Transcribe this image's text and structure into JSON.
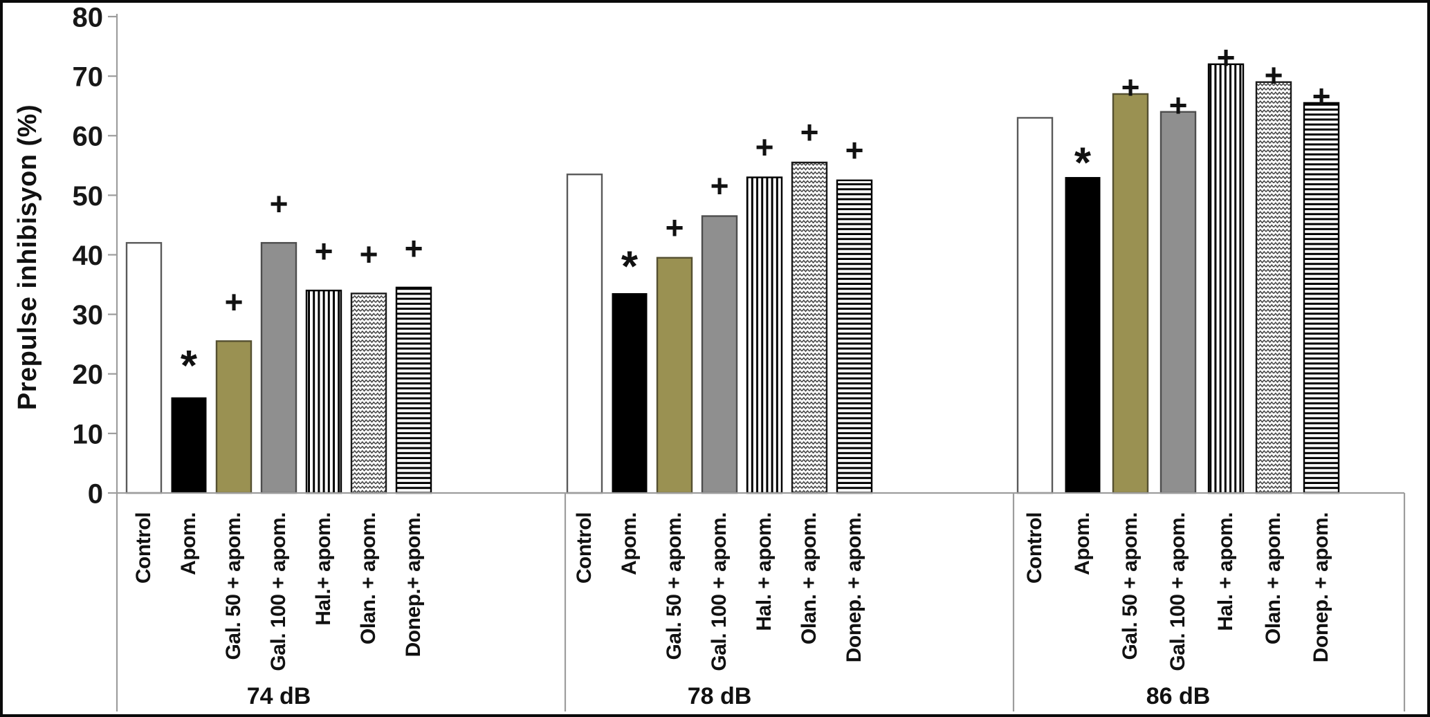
{
  "chart_data": {
    "type": "bar",
    "title": "",
    "ylabel": "Prepulse inhibisyon (%)",
    "xlabel": "",
    "ylim": [
      0,
      80
    ],
    "yticks": [
      0,
      10,
      20,
      30,
      40,
      50,
      60,
      70,
      80
    ],
    "grid": false,
    "legend_position": "none",
    "annotation_symbols": {
      "significant_decrease": "*",
      "significant_increase": "+"
    },
    "group_labels": [
      "74 dB",
      "78 dB",
      "86 dB"
    ],
    "series_styles": [
      {
        "key": "control",
        "fill": "#ffffff",
        "outline": "#595959",
        "pattern": "solid"
      },
      {
        "key": "apom",
        "fill": "#000000",
        "outline": "#000000",
        "pattern": "solid"
      },
      {
        "key": "gal50",
        "fill": "#9a9152",
        "outline": "#555031",
        "pattern": "solid"
      },
      {
        "key": "gal100",
        "fill": "#8f8f8f",
        "outline": "#4d4d4d",
        "pattern": "solid"
      },
      {
        "key": "hal",
        "fill": "#ffffff",
        "outline": "#000000",
        "pattern": "vertical-stripes"
      },
      {
        "key": "olan",
        "fill": "#ffffff",
        "outline": "#1a1a1a",
        "pattern": "zigzag"
      },
      {
        "key": "donep",
        "fill": "#ffffff",
        "outline": "#000000",
        "pattern": "horizontal-stripes"
      }
    ],
    "groups": [
      {
        "label": "74 dB",
        "bars": [
          {
            "category": "Control",
            "value": 42,
            "annotation": ""
          },
          {
            "category": "Apom.",
            "value": 16,
            "annotation": "*"
          },
          {
            "category": "Gal. 50 + apom.",
            "value": 25.5,
            "annotation": "+"
          },
          {
            "category": "Gal. 100 + apom.",
            "value": 42,
            "annotation": "+"
          },
          {
            "category": "Hal.+ apom.",
            "value": 34,
            "annotation": "+"
          },
          {
            "category": "Olan. + apom.",
            "value": 33.5,
            "annotation": "+"
          },
          {
            "category": "Donep.+ apom.",
            "value": 34.5,
            "annotation": "+"
          }
        ]
      },
      {
        "label": "78 dB",
        "bars": [
          {
            "category": "Control",
            "value": 53.5,
            "annotation": ""
          },
          {
            "category": "Apom.",
            "value": 33.5,
            "annotation": "*"
          },
          {
            "category": "Gal. 50 + apom.",
            "value": 39.5,
            "annotation": "+"
          },
          {
            "category": "Gal. 100 + apom.",
            "value": 46.5,
            "annotation": "+"
          },
          {
            "category": "Hal. + apom.",
            "value": 53,
            "annotation": "+"
          },
          {
            "category": "Olan. + apom.",
            "value": 55.5,
            "annotation": "+"
          },
          {
            "category": "Donep. + apom.",
            "value": 52.5,
            "annotation": "+"
          }
        ]
      },
      {
        "label": "86 dB",
        "bars": [
          {
            "category": "Control",
            "value": 63,
            "annotation": ""
          },
          {
            "category": "Apom.",
            "value": 53,
            "annotation": "*"
          },
          {
            "category": "Gal. 50 + apom.",
            "value": 67,
            "annotation": "+"
          },
          {
            "category": "Gal. 100 + apom.",
            "value": 64,
            "annotation": "+"
          },
          {
            "category": "Hal. + apom.",
            "value": 72,
            "annotation": "+"
          },
          {
            "category": "Olan. + apom.",
            "value": 69,
            "annotation": "+"
          },
          {
            "category": "Donep. + apom.",
            "value": 65.5,
            "annotation": "+"
          }
        ]
      }
    ]
  }
}
